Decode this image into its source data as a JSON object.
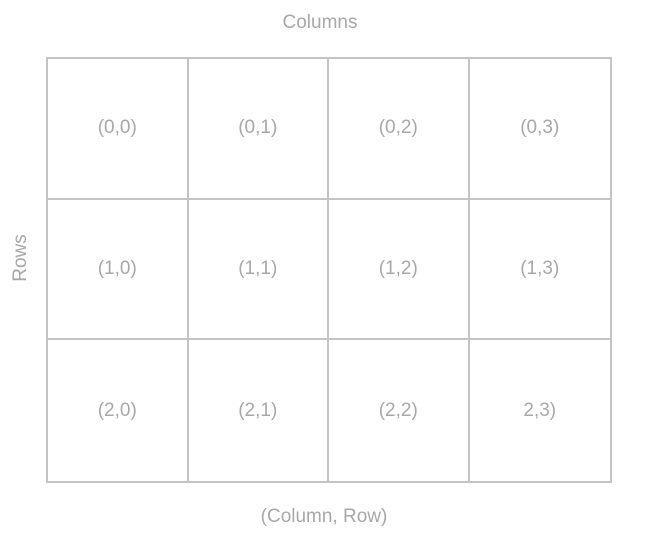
{
  "title": "Columns",
  "row_axis_label": "Rows",
  "footer": "(Column, Row)",
  "grid": {
    "rows": [
      [
        "(0,0)",
        "(0,1)",
        "(0,2)",
        "(0,3)"
      ],
      [
        "(1,0)",
        "(1,1)",
        "(1,2)",
        "(1,3)"
      ],
      [
        "(2,0)",
        "(2,1)",
        "(2,2)",
        "2,3)"
      ]
    ]
  },
  "colors": {
    "text": "#a8a8a8",
    "grid_line": "#c4c4c4",
    "background": "#ffffff"
  }
}
